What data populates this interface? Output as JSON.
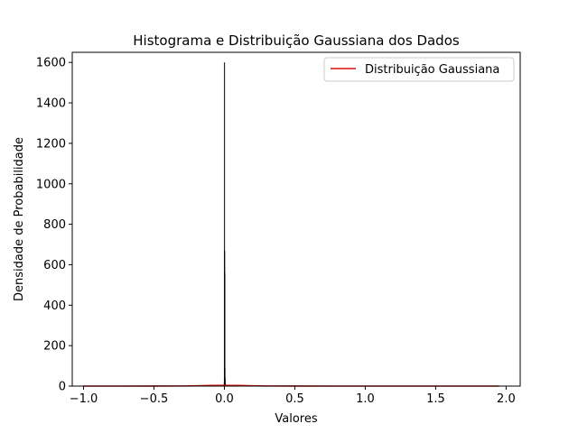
{
  "chart_data": {
    "type": "bar",
    "title": "Histograma e Distribuição Gaussiana dos Dados",
    "xlabel": "Valores",
    "ylabel": "Densidade de Probabilidade",
    "xlim": [
      -1.08,
      2.1
    ],
    "ylim": [
      0,
      1650
    ],
    "x_ticks": [
      -1.0,
      -0.5,
      0.0,
      0.5,
      1.0,
      1.5,
      2.0
    ],
    "x_tick_labels": [
      "−1.0",
      "−0.5",
      "0.0",
      "0.5",
      "1.0",
      "1.5",
      "2.0"
    ],
    "y_ticks": [
      0,
      200,
      400,
      600,
      800,
      1000,
      1200,
      1400,
      1600
    ],
    "y_tick_labels": [
      "0",
      "200",
      "400",
      "600",
      "800",
      "1000",
      "1200",
      "1400",
      "1600"
    ],
    "grid": false,
    "legend_position": "top-right",
    "histogram": {
      "color": "#000000",
      "bins": [
        {
          "x": -0.002,
          "value": 2
        },
        {
          "x": -0.001,
          "value": 20
        },
        {
          "x": 0.0,
          "value": 1600
        },
        {
          "x": 0.001,
          "value": 670
        },
        {
          "x": 0.002,
          "value": 560
        },
        {
          "x": 0.003,
          "value": 90
        },
        {
          "x": 0.004,
          "value": 40
        },
        {
          "x": 0.006,
          "value": 15
        },
        {
          "x": 0.009,
          "value": 6
        },
        {
          "x": 0.013,
          "value": 3
        },
        {
          "x": 0.02,
          "value": 2
        },
        {
          "x": 0.03,
          "value": 1
        },
        {
          "x": 0.08,
          "value": 1
        },
        {
          "x": 0.3,
          "value": 1
        },
        {
          "x": 0.33,
          "value": 1
        },
        {
          "x": 0.95,
          "value": 1
        }
      ]
    },
    "series": [
      {
        "name": "Distribuição Gaussiana",
        "type": "line",
        "color": "#dd1111",
        "x": [
          -1.0,
          -0.5,
          -0.3,
          -0.2,
          -0.1,
          0.0,
          0.1,
          0.2,
          0.3,
          0.5,
          1.0,
          1.5,
          1.95
        ],
        "values": [
          0.0,
          0.1,
          0.6,
          1.6,
          3.0,
          3.6,
          3.0,
          1.6,
          0.6,
          0.1,
          0.0,
          0.0,
          0.0
        ]
      }
    ]
  }
}
